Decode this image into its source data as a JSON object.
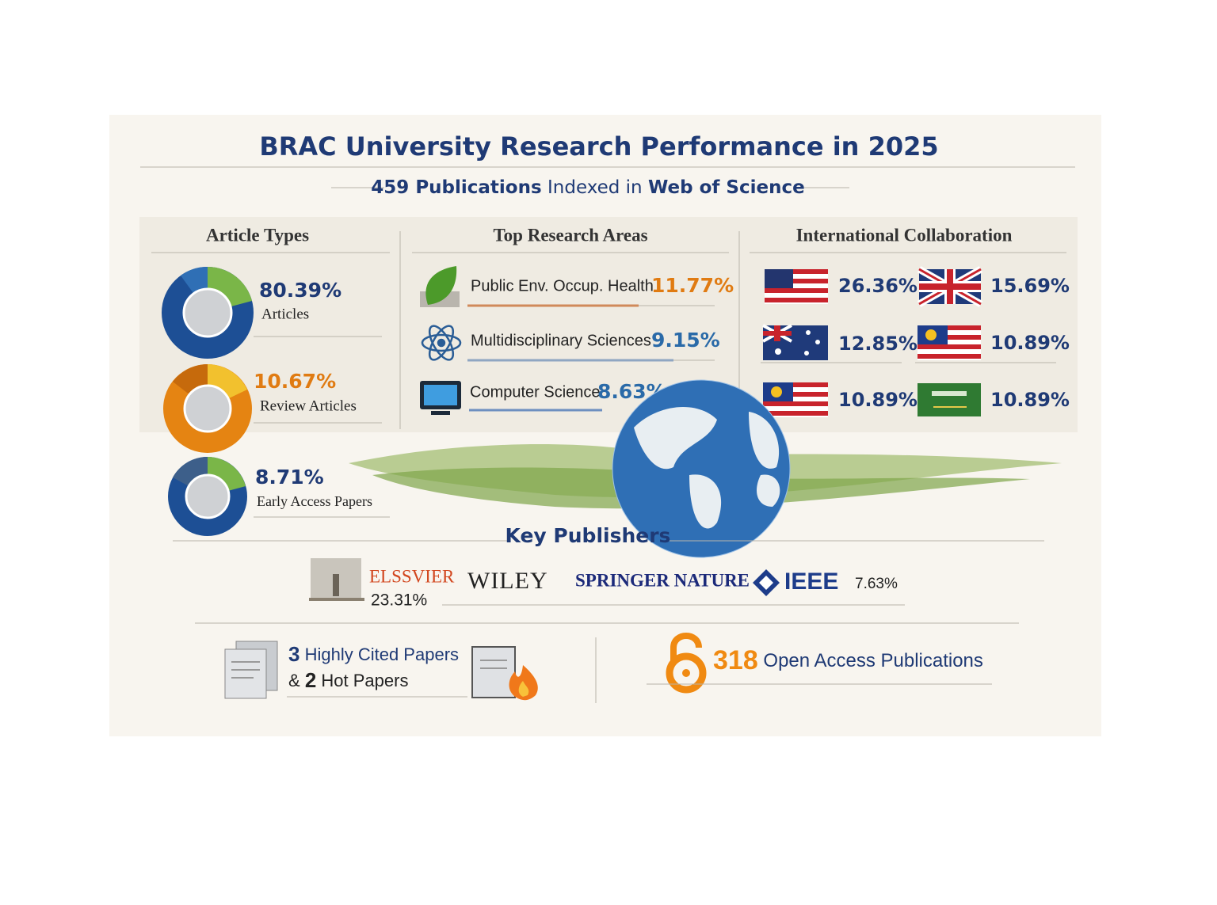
{
  "header": {
    "title": "BRAC University Research Performance in 2025",
    "subtitle": {
      "lead": "459 Publications",
      "middle": "Indexed in",
      "source": "Web of Science"
    }
  },
  "article_types": {
    "heading": "Article Types",
    "items": [
      {
        "value": "80.39%",
        "label": "Articles"
      },
      {
        "value": "10.67%",
        "label": "Review Articles"
      },
      {
        "value": "8.71%",
        "label": "Early Access Papers"
      }
    ]
  },
  "research_areas": {
    "heading": "Top Research Areas",
    "items": [
      {
        "label": "Public Env. Occup. Health",
        "value": "11.77%"
      },
      {
        "label": "Multidisciplinary Sciences",
        "value": "9.15%"
      },
      {
        "label": "Computer Science",
        "value": "8.63%"
      }
    ]
  },
  "collaboration": {
    "heading": "International Collaboration",
    "items": [
      {
        "value": "26.36%"
      },
      {
        "value": "15.69%"
      },
      {
        "value": "12.85%"
      },
      {
        "value": "10.89%"
      },
      {
        "value": "10.89%"
      },
      {
        "value": "10.89%"
      }
    ]
  },
  "publishers": {
    "heading": "Key Publishers",
    "items": [
      {
        "name": "ELSSVIER",
        "value": "23.31%"
      },
      {
        "name": "WILEY"
      },
      {
        "name": "SPRINGER NATURE"
      },
      {
        "name": "IEEE",
        "value": "7.63%"
      }
    ]
  },
  "highlights": {
    "cited_count": "3",
    "cited_label": "Highly Cited Papers",
    "joiner": "&",
    "hot_count": "2",
    "hot_label": "Hot Papers",
    "open_access_count": "318",
    "open_access_label": "Open Access Publications"
  }
}
